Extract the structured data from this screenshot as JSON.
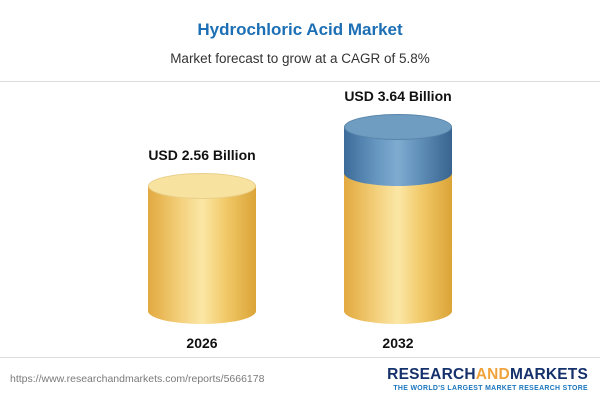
{
  "header": {
    "title": "Hydrochloric Acid Market",
    "subtitle": "Market forecast to grow at a CAGR of 5.8%"
  },
  "chart_data": {
    "type": "bar",
    "variant": "3d-cylinder",
    "categories": [
      "2026",
      "2032"
    ],
    "values": [
      2.56,
      3.64
    ],
    "value_labels": [
      "USD 2.56 Billion",
      "USD 3.64 Billion"
    ],
    "unit": "USD Billion",
    "title": "Hydrochloric Acid Market",
    "xlabel": "",
    "ylabel": "",
    "ylim": [
      0,
      4
    ],
    "legend": "none",
    "grid": false,
    "colors": {
      "base_segment": "#f2c75e",
      "growth_segment": "#5d8cb5"
    },
    "notes": "2032 cylinder shows the 2026 base value in yellow with the incremental growth (1.08 billion) as a blue top segment"
  },
  "footer": {
    "url": "https://www.researchandmarkets.com/reports/5666178",
    "logo": {
      "part1": "RESEARCH",
      "part2": "AND",
      "part3": "MARKETS",
      "tagline": "THE WORLD'S LARGEST MARKET RESEARCH STORE"
    }
  }
}
